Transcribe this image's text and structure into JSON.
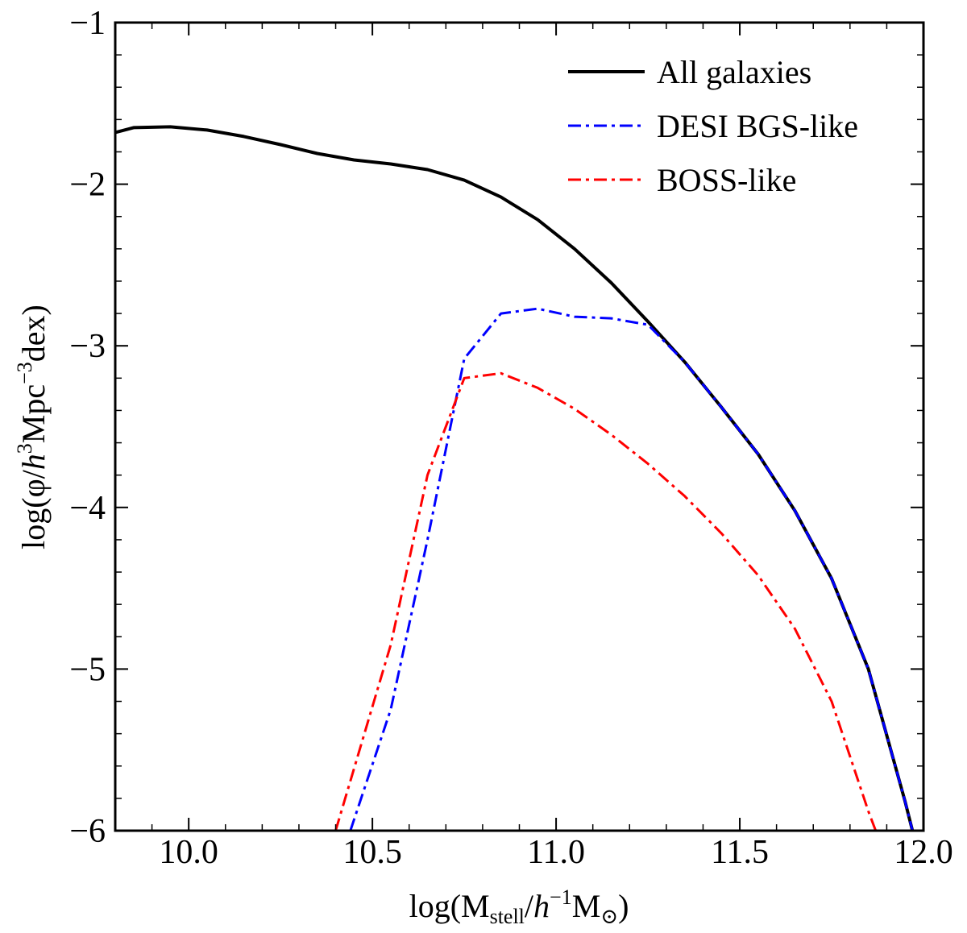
{
  "chart_data": {
    "type": "line",
    "title": "",
    "xlabel": "log(M_stell/h^-1 M_sun)",
    "xlabel_parts": {
      "prefix": "log(M",
      "sub1": "stell",
      "mid": "/",
      "h": "h",
      "sup": "−1",
      "m": "M",
      "sun": "⊙",
      "suffix": ")"
    },
    "ylabel": "log(φ/h^3 Mpc^-3 dex)",
    "ylabel_parts": {
      "prefix": "log(φ/",
      "h": "h",
      "sup1": "3",
      "mid": "Mpc",
      "sup2": "−3",
      "suffix": "dex)"
    },
    "xlim": [
      9.8,
      12.0
    ],
    "ylim": [
      -6,
      -1
    ],
    "x_ticks": [
      10.0,
      10.5,
      11.0,
      11.5,
      12.0
    ],
    "x_tick_labels": [
      "10.0",
      "10.5",
      "11.0",
      "11.5",
      "12.0"
    ],
    "y_ticks": [
      -6,
      -5,
      -4,
      -3,
      -2,
      -1
    ],
    "y_tick_labels": [
      "−6",
      "−5",
      "−4",
      "−3",
      "−2",
      "−1"
    ],
    "grid": false,
    "legend_position": "top-right",
    "series": [
      {
        "name": "All galaxies",
        "color": "#000000",
        "style": "solid",
        "x": [
          9.8,
          9.85,
          9.95,
          10.05,
          10.15,
          10.25,
          10.35,
          10.45,
          10.55,
          10.65,
          10.75,
          10.85,
          10.95,
          11.05,
          11.15,
          11.25,
          11.35,
          11.45,
          11.55,
          11.65,
          11.75,
          11.85,
          11.95,
          11.97
        ],
        "y": [
          -1.68,
          -1.65,
          -1.645,
          -1.665,
          -1.705,
          -1.755,
          -1.81,
          -1.85,
          -1.875,
          -1.91,
          -1.975,
          -2.08,
          -2.22,
          -2.4,
          -2.61,
          -2.85,
          -3.1,
          -3.38,
          -3.67,
          -4.02,
          -4.44,
          -5.0,
          -5.82,
          -6.0
        ]
      },
      {
        "name": "DESI BGS-like",
        "color": "#0000ff",
        "style": "dashdot",
        "x": [
          10.44,
          10.55,
          10.65,
          10.75,
          10.85,
          10.95,
          11.05,
          11.15,
          11.25,
          11.35,
          11.45,
          11.55,
          11.65,
          11.75,
          11.85,
          11.95,
          11.97
        ],
        "y": [
          -6.0,
          -5.25,
          -4.2,
          -3.08,
          -2.8,
          -2.77,
          -2.82,
          -2.83,
          -2.87,
          -3.1,
          -3.38,
          -3.67,
          -4.02,
          -4.44,
          -5.0,
          -5.82,
          -6.0
        ]
      },
      {
        "name": "BOSS-like",
        "color": "#ff0000",
        "style": "dashdot",
        "x": [
          10.4,
          10.55,
          10.65,
          10.75,
          10.85,
          10.95,
          11.05,
          11.15,
          11.25,
          11.35,
          11.45,
          11.55,
          11.65,
          11.75,
          11.85,
          11.87
        ],
        "y": [
          -6.0,
          -4.85,
          -3.8,
          -3.2,
          -3.17,
          -3.26,
          -3.39,
          -3.55,
          -3.73,
          -3.93,
          -4.16,
          -4.42,
          -4.75,
          -5.2,
          -5.88,
          -6.0
        ]
      }
    ]
  }
}
